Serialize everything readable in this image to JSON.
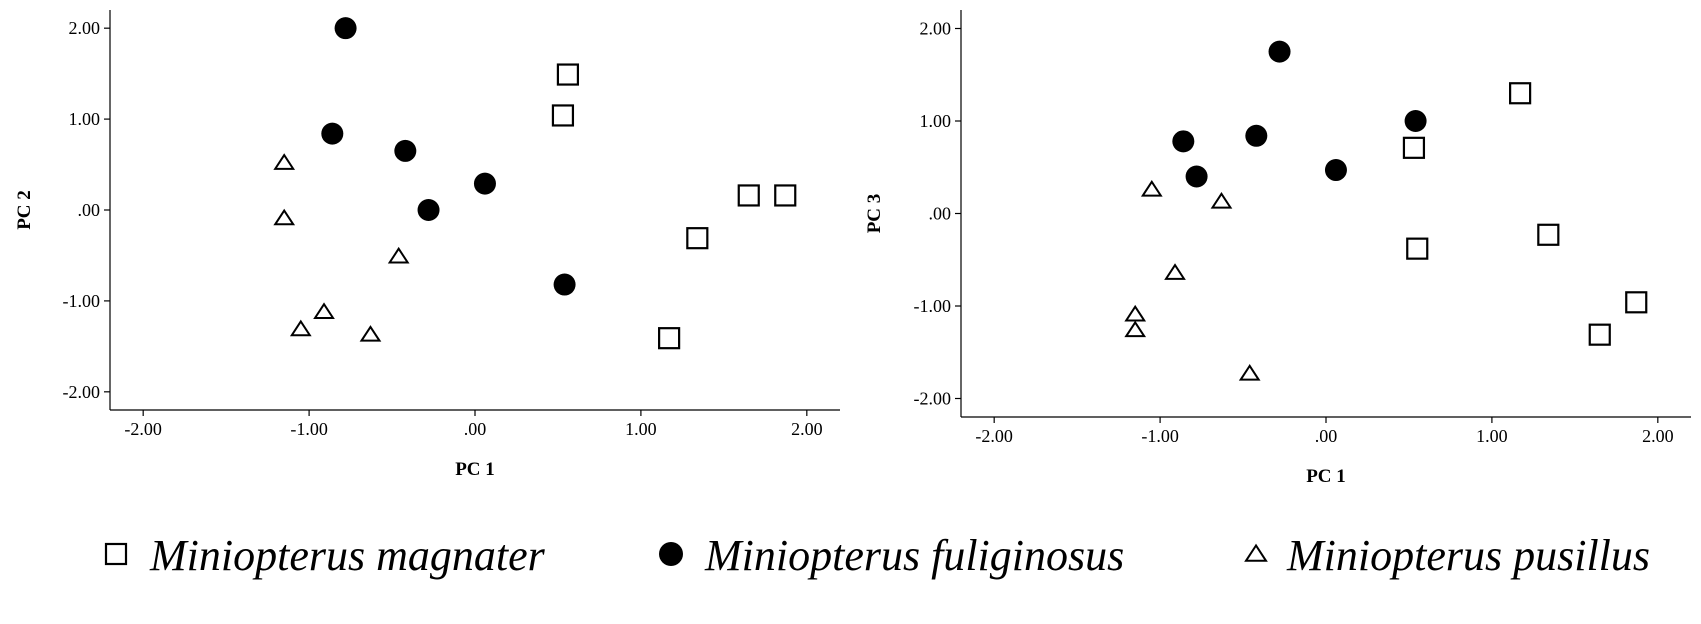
{
  "chart_data": [
    {
      "type": "scatter",
      "xlabel": "PC 1",
      "ylabel": "PC 2",
      "xlim": [
        -2.2,
        2.2
      ],
      "ylim": [
        -2.2,
        2.2
      ],
      "xticks": [
        -2,
        -1,
        0,
        1,
        2
      ],
      "yticks": [
        -2,
        -1,
        0,
        1,
        2
      ],
      "xtick_labels": [
        "-2.00",
        "-1.00",
        ".00",
        "1.00",
        "2.00"
      ],
      "ytick_labels": [
        "-2.00",
        "-1.00",
        ".00",
        "1.00",
        "2.00"
      ],
      "grid": false,
      "series": [
        {
          "name": "Miniopterus magnater",
          "marker": "square",
          "points": [
            [
              0.56,
              1.49
            ],
            [
              0.53,
              1.04
            ],
            [
              1.65,
              0.16
            ],
            [
              1.87,
              0.16
            ],
            [
              1.34,
              -0.31
            ],
            [
              1.17,
              -1.41
            ]
          ]
        },
        {
          "name": "Miniopterus fuliginosus",
          "marker": "circle",
          "points": [
            [
              -0.78,
              2.0
            ],
            [
              -0.86,
              0.84
            ],
            [
              -0.42,
              0.65
            ],
            [
              -0.28,
              0.0
            ],
            [
              0.06,
              0.29
            ],
            [
              0.54,
              -0.82
            ]
          ]
        },
        {
          "name": "Miniopterus pusillus",
          "marker": "triangle",
          "points": [
            [
              -1.15,
              0.52
            ],
            [
              -1.15,
              -0.09
            ],
            [
              -0.46,
              -0.51
            ],
            [
              -0.91,
              -1.12
            ],
            [
              -1.05,
              -1.31
            ],
            [
              -0.63,
              -1.37
            ]
          ]
        }
      ]
    },
    {
      "type": "scatter",
      "xlabel": "PC 1",
      "ylabel": "PC 3",
      "xlim": [
        -2.2,
        2.2
      ],
      "ylim": [
        -2.2,
        2.2
      ],
      "xticks": [
        -2,
        -1,
        0,
        1,
        2
      ],
      "yticks": [
        -2,
        -1,
        0,
        1,
        2
      ],
      "xtick_labels": [
        "-2.00",
        "-1.00",
        ".00",
        "1.00",
        "2.00"
      ],
      "ytick_labels": [
        "-2.00",
        "-1.00",
        ".00",
        "1.00",
        "2.00"
      ],
      "grid": false,
      "series": [
        {
          "name": "Miniopterus magnater",
          "marker": "square",
          "points": [
            [
              1.17,
              1.3
            ],
            [
              0.53,
              0.71
            ],
            [
              0.55,
              -0.38
            ],
            [
              1.34,
              -0.23
            ],
            [
              1.87,
              -0.96
            ],
            [
              1.65,
              -1.31
            ]
          ]
        },
        {
          "name": "Miniopterus fuliginosus",
          "marker": "circle",
          "points": [
            [
              -0.28,
              1.75
            ],
            [
              0.54,
              1.0
            ],
            [
              -0.86,
              0.78
            ],
            [
              -0.42,
              0.84
            ],
            [
              -0.78,
              0.4
            ],
            [
              0.06,
              0.47
            ]
          ]
        },
        {
          "name": "Miniopterus pusillus",
          "marker": "triangle",
          "points": [
            [
              -1.05,
              0.26
            ],
            [
              -0.63,
              0.13
            ],
            [
              -0.91,
              -0.64
            ],
            [
              -1.15,
              -1.09
            ],
            [
              -1.15,
              -1.26
            ],
            [
              -0.46,
              -1.73
            ]
          ]
        }
      ]
    }
  ],
  "legend": {
    "placement": "bottom",
    "items": [
      {
        "label": "Miniopterus magnater",
        "marker": "square"
      },
      {
        "label": "Miniopterus fuliginosus",
        "marker": "circle"
      },
      {
        "label": "Miniopterus pusillus",
        "marker": "triangle"
      }
    ]
  }
}
